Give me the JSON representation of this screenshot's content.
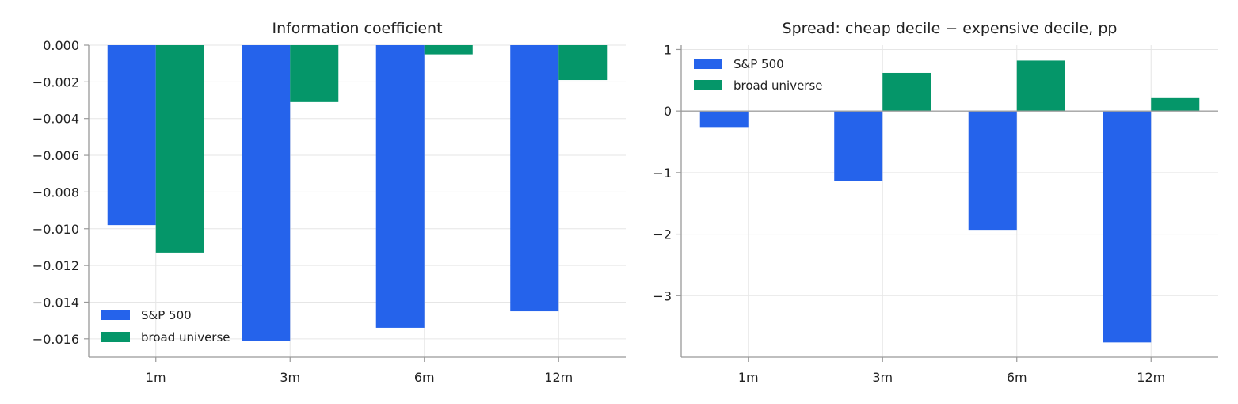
{
  "colors": {
    "sp500": "#2563eb",
    "broad": "#059669"
  },
  "chart_data": [
    {
      "type": "bar",
      "title": "Information coefficient",
      "categories": [
        "1m",
        "3m",
        "6m",
        "12m"
      ],
      "series": [
        {
          "name": "S&P 500",
          "values": [
            -0.0098,
            -0.0161,
            -0.0154,
            -0.0145
          ]
        },
        {
          "name": "broad universe",
          "values": [
            -0.0113,
            -0.0031,
            -0.0005,
            -0.0019
          ]
        }
      ],
      "ylim": [
        -0.017,
        0.0
      ],
      "yticks": [
        0.0,
        -0.002,
        -0.004,
        -0.006,
        -0.008,
        -0.01,
        -0.012,
        -0.014,
        -0.016
      ],
      "ytick_labels": [
        "0.000",
        "−0.002",
        "−0.004",
        "−0.006",
        "−0.008",
        "−0.010",
        "−0.012",
        "−0.014",
        "−0.016"
      ],
      "xlabel": "",
      "ylabel": "",
      "grid": true,
      "legend": "lower-left"
    },
    {
      "type": "bar",
      "title": "Spread: cheap decile − expensive decile, pp",
      "categories": [
        "1m",
        "3m",
        "6m",
        "12m"
      ],
      "series": [
        {
          "name": "S&P 500",
          "values": [
            -0.26,
            -1.14,
            -1.93,
            -3.76
          ]
        },
        {
          "name": "broad universe",
          "values": [
            0.0,
            0.62,
            0.82,
            0.21
          ]
        }
      ],
      "ylim": [
        -4.0,
        1.07
      ],
      "yticks": [
        1,
        0,
        -1,
        -2,
        -3
      ],
      "ytick_labels": [
        "1",
        "0",
        "−1",
        "−2",
        "−3"
      ],
      "xlabel": "",
      "ylabel": "",
      "grid": true,
      "legend": "upper-left"
    }
  ]
}
